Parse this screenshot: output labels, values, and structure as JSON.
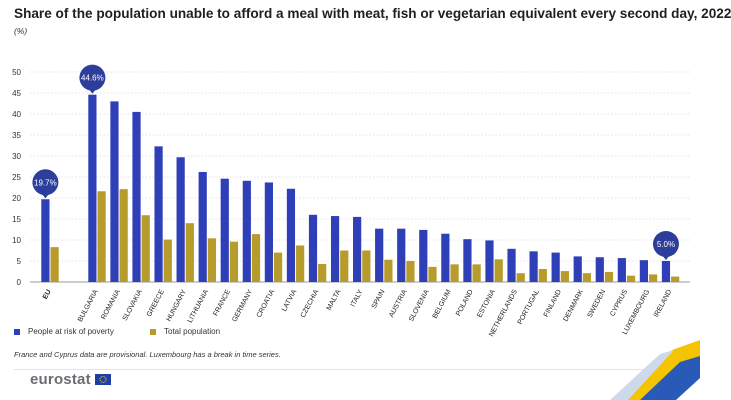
{
  "header": {
    "title": "Share of the population unable to afford a meal with meat, fish or vegetarian equivalent every second day, 2022",
    "unit": "(%)"
  },
  "colors": {
    "poverty": "#2e3fb8",
    "total": "#b79b2b",
    "grid": "#c9ccd6",
    "callout": "#2c3d9c"
  },
  "chart_data": {
    "type": "bar",
    "categories": [
      "EU",
      "BULGARIA",
      "ROMANIA",
      "SLOVAKIA",
      "GREECE",
      "HUNGARY",
      "LITHUANIA",
      "FRANCE",
      "GERMANY",
      "CROATIA",
      "LATVIA",
      "CZECHIA",
      "MALTA",
      "ITALY",
      "SPAIN",
      "AUSTRIA",
      "SLOVENIA",
      "BELGIUM",
      "POLAND",
      "ESTONIA",
      "NETHERLANDS",
      "PORTUGAL",
      "FINLAND",
      "DENMARK",
      "SWEDEN",
      "CYPRUS",
      "LUXEMBOURG",
      "IRELAND"
    ],
    "series": [
      {
        "name": "People at risk of poverty",
        "values": [
          19.7,
          44.6,
          43.0,
          40.5,
          32.3,
          29.7,
          26.2,
          24.6,
          24.1,
          23.7,
          22.2,
          16.0,
          15.7,
          15.5,
          12.7,
          12.7,
          12.4,
          11.5,
          10.2,
          9.9,
          7.9,
          7.3,
          7.0,
          6.1,
          5.9,
          5.7,
          5.2,
          5.0
        ]
      },
      {
        "name": "Total population",
        "values": [
          8.3,
          21.6,
          22.1,
          15.9,
          10.1,
          14.0,
          10.4,
          9.6,
          11.4,
          7.0,
          8.7,
          4.3,
          7.5,
          7.5,
          5.3,
          5.0,
          3.6,
          4.2,
          4.2,
          5.4,
          2.1,
          3.1,
          2.6,
          2.1,
          2.4,
          1.5,
          1.8,
          1.3
        ]
      }
    ],
    "ylim": [
      0,
      50
    ],
    "yticks": [
      0,
      5,
      10,
      15,
      20,
      25,
      30,
      35,
      40,
      45,
      50
    ],
    "grid": true,
    "legend": "bottom-left",
    "callouts": [
      {
        "category": "EU",
        "label": "19.7%"
      },
      {
        "category": "BULGARIA",
        "label": "44.6%"
      },
      {
        "category": "IRELAND",
        "label": "5.0%"
      }
    ]
  },
  "footer": {
    "note": "France and Cyprus data are provisional. Luxembourg has a break in time series.",
    "logo": "eurostat"
  }
}
